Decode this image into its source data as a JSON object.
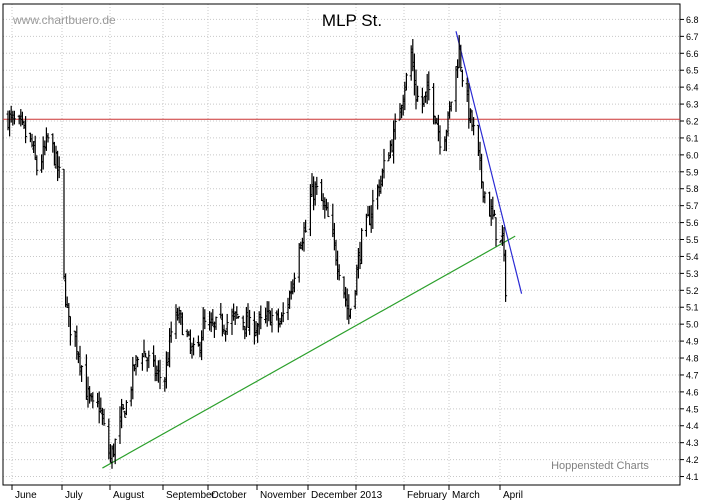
{
  "chart_data": {
    "type": "ohlc",
    "title": "MLP St.",
    "watermark": "www.chartbuero.de",
    "credit": "Hoppenstedt Charts",
    "xlabel": "",
    "ylabel": "",
    "ylim": [
      4.05,
      6.87
    ],
    "y_ticks": [
      "4.1",
      "4.2",
      "4.3",
      "4.4",
      "4.5",
      "4.6",
      "4.7",
      "4.8",
      "4.9",
      "5.0",
      "5.1",
      "5.2",
      "5.3",
      "5.4",
      "5.5",
      "5.6",
      "5.7",
      "5.8",
      "5.9",
      "6.0",
      "6.1",
      "6.2",
      "6.3",
      "6.4",
      "6.5",
      "6.6",
      "6.7",
      "6.8"
    ],
    "x_ticks": [
      "June",
      "July",
      "August",
      "September",
      "October",
      "November",
      "December",
      "2013",
      "February",
      "March",
      "April"
    ],
    "grid": true,
    "period": "2012-05-28 to 2013-04-05 (daily)",
    "close_path": [
      [
        "2012-05-28",
        6.22
      ],
      [
        "2012-06-06",
        6.15
      ],
      [
        "2012-06-12",
        6.05
      ],
      [
        "2012-06-15",
        5.92
      ],
      [
        "2012-06-19",
        6.0
      ],
      [
        "2012-06-23",
        6.12
      ],
      [
        "2012-06-27",
        5.95
      ],
      [
        "2012-06-29",
        5.88
      ],
      [
        "2012-07-02",
        5.25
      ],
      [
        "2012-07-05",
        5.0
      ],
      [
        "2012-07-08",
        4.95
      ],
      [
        "2012-07-12",
        4.8
      ],
      [
        "2012-07-16",
        4.6
      ],
      [
        "2012-07-20",
        4.5
      ],
      [
        "2012-07-24",
        4.52
      ],
      [
        "2012-07-27",
        4.38
      ],
      [
        "2012-07-31",
        4.2
      ],
      [
        "2012-08-03",
        4.3
      ],
      [
        "2012-08-07",
        4.45
      ],
      [
        "2012-08-11",
        4.55
      ],
      [
        "2012-08-15",
        4.75
      ],
      [
        "2012-08-20",
        4.85
      ],
      [
        "2012-08-24",
        4.78
      ],
      [
        "2012-08-29",
        4.7
      ],
      [
        "2012-09-03",
        4.68
      ],
      [
        "2012-09-07",
        4.95
      ],
      [
        "2012-09-11",
        5.05
      ],
      [
        "2012-09-15",
        4.98
      ],
      [
        "2012-09-19",
        4.85
      ],
      [
        "2012-09-23",
        4.8
      ],
      [
        "2012-09-27",
        5.0
      ],
      [
        "2012-10-02",
        4.97
      ],
      [
        "2012-10-08",
        5.0
      ],
      [
        "2012-10-14",
        5.02
      ],
      [
        "2012-10-20",
        5.05
      ],
      [
        "2012-10-26",
        4.98
      ],
      [
        "2012-11-02",
        5.0
      ],
      [
        "2012-11-08",
        5.05
      ],
      [
        "2012-11-14",
        5.0
      ],
      [
        "2012-11-18",
        5.1
      ],
      [
        "2012-11-22",
        5.25
      ],
      [
        "2012-11-26",
        5.5
      ],
      [
        "2012-11-30",
        5.55
      ],
      [
        "2012-12-03",
        5.75
      ],
      [
        "2012-12-06",
        5.8
      ],
      [
        "2012-12-10",
        5.72
      ],
      [
        "2012-12-14",
        5.62
      ],
      [
        "2012-12-18",
        5.45
      ],
      [
        "2012-12-22",
        5.3
      ],
      [
        "2012-12-27",
        5.05
      ],
      [
        "2012-12-31",
        5.25
      ],
      [
        "2013-01-04",
        5.5
      ],
      [
        "2013-01-08",
        5.6
      ],
      [
        "2013-01-12",
        5.75
      ],
      [
        "2013-01-16",
        5.85
      ],
      [
        "2013-01-20",
        6.0
      ],
      [
        "2013-01-24",
        6.1
      ],
      [
        "2013-01-28",
        6.3
      ],
      [
        "2013-02-01",
        6.45
      ],
      [
        "2013-02-04",
        6.6
      ],
      [
        "2013-02-07",
        6.35
      ],
      [
        "2013-02-11",
        6.3
      ],
      [
        "2013-02-15",
        6.38
      ],
      [
        "2013-02-19",
        6.25
      ],
      [
        "2013-02-23",
        6.05
      ],
      [
        "2013-02-27",
        6.2
      ],
      [
        "2013-03-03",
        6.45
      ],
      [
        "2013-03-06",
        6.62
      ],
      [
        "2013-03-09",
        6.4
      ],
      [
        "2013-03-12",
        6.25
      ],
      [
        "2013-03-16",
        6.1
      ],
      [
        "2013-03-20",
        5.85
      ],
      [
        "2013-03-24",
        5.7
      ],
      [
        "2013-03-28",
        5.6
      ],
      [
        "2013-03-31",
        5.45
      ],
      [
        "2013-04-02",
        5.5
      ],
      [
        "2013-04-04",
        5.22
      ]
    ],
    "lines": [
      {
        "kind": "horizontal",
        "color": "#cc3333",
        "y": 6.21
      },
      {
        "kind": "support",
        "color": "#2ca02c",
        "from": [
          "2012-07-26",
          4.15
        ],
        "to": [
          "2013-04-10",
          5.52
        ]
      },
      {
        "kind": "resistance",
        "color": "#2a2ad4",
        "from": [
          "2013-03-04",
          6.73
        ],
        "to": [
          "2013-04-14",
          5.18
        ]
      }
    ]
  }
}
